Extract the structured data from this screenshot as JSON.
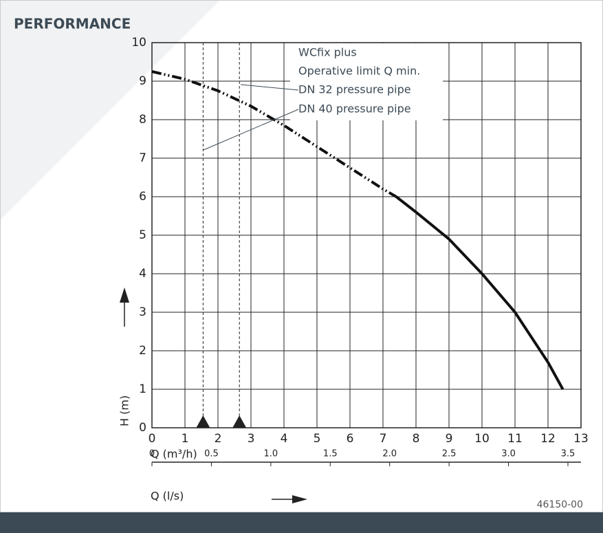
{
  "chart_data": {
    "type": "line",
    "title": "PERFORMANCE",
    "xlabel": "Q (m³/h)",
    "ylabel": "H (m)",
    "x2label": "Q (l/s)",
    "xlim": [
      0,
      13
    ],
    "xticks": [
      0,
      1,
      2,
      3,
      4,
      5,
      6,
      7,
      8,
      9,
      10,
      11,
      12,
      13
    ],
    "ylim": [
      0,
      10
    ],
    "yticks": [
      0,
      1,
      2,
      3,
      4,
      5,
      6,
      7,
      8,
      9,
      10
    ],
    "x2lim": [
      0,
      3.61
    ],
    "x2ticks": [
      0,
      0.5,
      {
        "value": 1,
        "label": "1.0"
      },
      1.5,
      {
        "value": 2,
        "label": "2.0"
      },
      2.5,
      {
        "value": 3,
        "label": "3.0"
      },
      3.5
    ],
    "grid": true,
    "series": [
      {
        "style": "dash-dot",
        "color": "#111111",
        "x": [
          0,
          1,
          2,
          3,
          4,
          5,
          6,
          7,
          7.4
        ],
        "values": [
          9.25,
          9.05,
          8.75,
          8.35,
          7.85,
          7.3,
          6.75,
          6.2,
          6.0
        ]
      },
      {
        "style": "solid",
        "color": "#111111",
        "x": [
          7.4,
          8,
          9,
          10,
          11,
          12,
          12.45
        ],
        "values": [
          6.0,
          5.6,
          4.9,
          4.0,
          3.0,
          1.7,
          1.0
        ]
      }
    ],
    "qmin_lines": [
      1.55,
      2.65
    ],
    "annotations": [
      "WCfix plus",
      "Operative limit Q min.",
      "DN 32 pressure pipe",
      "DN 40 pressure pipe"
    ],
    "figure_code": "46150-00"
  }
}
